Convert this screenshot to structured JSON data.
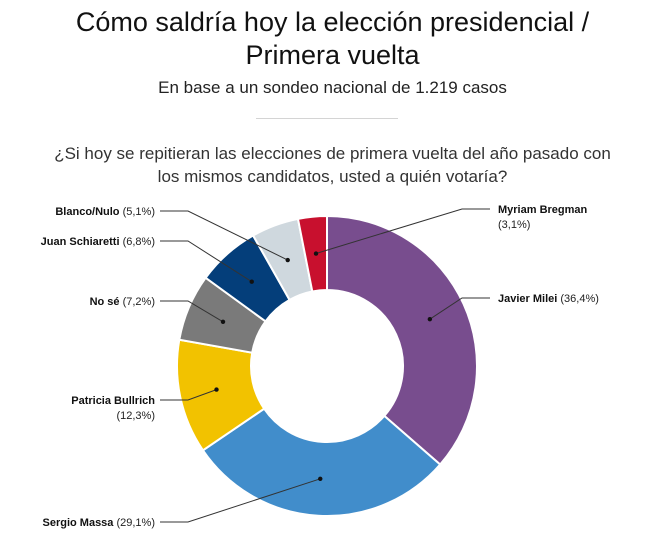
{
  "header": {
    "title_line1": "Cómo saldría hoy la elección presidencial /",
    "title_line2": "Primera vuelta",
    "subtitle": "En base a un sondeo nacional de 1.219 casos",
    "question_line1": "¿Si hoy se repitieran las elecciones de primera vuelta del año pasado con",
    "question_line2": "los mismos candidatos, usted a quién votaría?"
  },
  "chart_data": {
    "type": "pie",
    "variant": "donut",
    "title": "Cómo saldría hoy la elección presidencial / Primera vuelta",
    "subtitle": "En base a un sondeo nacional de 1.219 casos",
    "unit": "%",
    "slices": [
      {
        "name": "Javier Milei",
        "value": 36.4,
        "display": "(36,4%)",
        "color": "#784d8e"
      },
      {
        "name": "Sergio Massa",
        "value": 29.1,
        "display": "(29,1%)",
        "color": "#418dcb"
      },
      {
        "name": "Patricia Bullrich",
        "value": 12.3,
        "display": "(12,3%)",
        "color": "#f2c200"
      },
      {
        "name": "No sé",
        "value": 7.2,
        "display": "(7,2%)",
        "color": "#7a7a7a"
      },
      {
        "name": "Juan Schiaretti",
        "value": 6.8,
        "display": "(6,8%)",
        "color": "#043e7a"
      },
      {
        "name": "Blanco/Nulo",
        "value": 5.1,
        "display": "(5,1%)",
        "color": "#cfd8de"
      },
      {
        "name": "Myriam Bregman",
        "value": 3.1,
        "display": "(3,1%)",
        "color": "#c8102e"
      }
    ]
  }
}
